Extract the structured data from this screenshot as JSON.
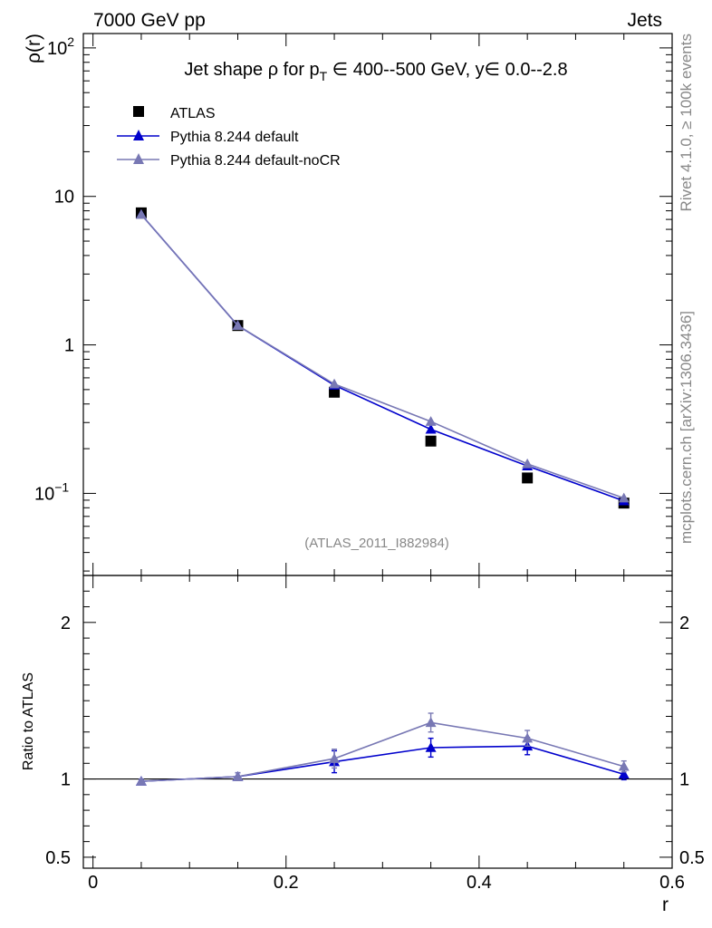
{
  "header": {
    "left": "7000 GeV pp",
    "right": "Jets"
  },
  "side_labels": {
    "rivet": "Rivet 4.1.0, ≥ 100k events",
    "mcplots": "mcplots.cern.ch [arXiv:1306.3436]"
  },
  "chart_data": [
    {
      "panel": "main",
      "type": "line",
      "title_parts": {
        "prefix": "Jet shape ",
        "rho": "ρ",
        "for": " for p",
        "sub": "T",
        "range": " ∈ 400--500 GeV, y∈ 0.0--2.8"
      },
      "ylabel": "ρ(r)",
      "yscale": "log",
      "ylim": [
        0.028,
        125
      ],
      "xlim": [
        -0.01,
        0.6
      ],
      "y_ticks": [
        {
          "value": 100,
          "base": "10",
          "exp": "2"
        },
        {
          "value": 10,
          "base": "10",
          "exp": ""
        },
        {
          "value": 1,
          "base": "1",
          "exp": ""
        },
        {
          "value": 0.1,
          "base": "10",
          "exp": "−1"
        }
      ],
      "watermark": "(ATLAS_2011_I882984)",
      "x": [
        0.05,
        0.15,
        0.25,
        0.35,
        0.45,
        0.55
      ],
      "series": [
        {
          "name": "ATLAS",
          "marker": "square",
          "color": "#000000",
          "values": [
            7.75,
            1.35,
            0.48,
            0.225,
            0.127,
            0.086
          ]
        },
        {
          "name": "Pythia 8.244 default",
          "marker": "triangle",
          "color": "#0000cc",
          "values": [
            7.55,
            1.35,
            0.535,
            0.27,
            0.153,
            0.089
          ]
        },
        {
          "name": "Pythia 8.244 default-noCR",
          "marker": "triangle",
          "color": "#7878b4",
          "values": [
            7.55,
            1.35,
            0.545,
            0.305,
            0.158,
            0.093
          ]
        }
      ]
    },
    {
      "panel": "ratio",
      "type": "line",
      "ylabel": "Ratio to ATLAS",
      "ylim": [
        0.43,
        2.3
      ],
      "xlabel": "r",
      "x_ticks": [
        "0",
        "0.2",
        "0.4",
        "0.6"
      ],
      "x_tick_values": [
        0,
        0.2,
        0.4,
        0.6
      ],
      "y_ticks": [
        {
          "value": 0.5,
          "label": "0.5"
        },
        {
          "value": 1,
          "label": "1"
        },
        {
          "value": 2,
          "label": "2"
        }
      ],
      "x": [
        0.05,
        0.15,
        0.25,
        0.35,
        0.45,
        0.55
      ],
      "series": [
        {
          "name": "Pythia 8.244 default",
          "color": "#0000cc",
          "values": [
            0.985,
            1.015,
            1.11,
            1.2,
            1.21,
            1.03
          ],
          "errors": [
            0.012,
            0.025,
            0.07,
            0.06,
            0.055,
            0.035
          ]
        },
        {
          "name": "Pythia 8.244 default-noCR",
          "color": "#7878b4",
          "values": [
            0.985,
            1.015,
            1.13,
            1.36,
            1.26,
            1.08
          ],
          "errors": [
            0.012,
            0.025,
            0.06,
            0.06,
            0.05,
            0.035
          ]
        }
      ]
    }
  ]
}
